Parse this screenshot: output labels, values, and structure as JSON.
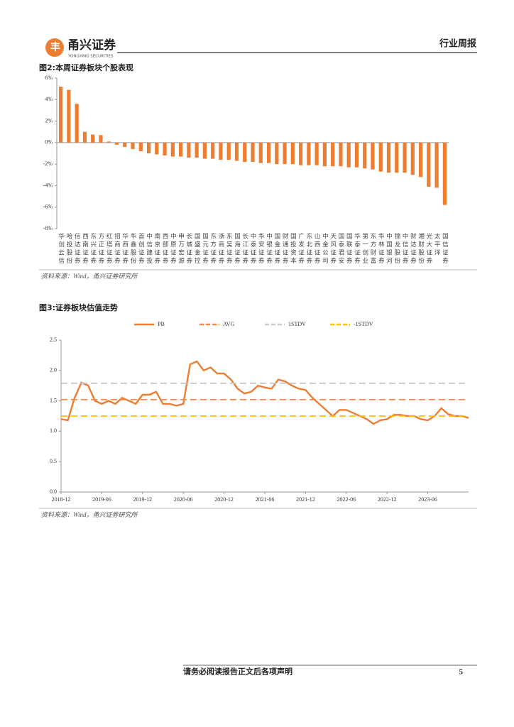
{
  "header": {
    "logo_name": "甬兴证券",
    "logo_sub": "YONGXING SECURITIES",
    "report_type": "行业周报"
  },
  "footer": {
    "disclaimer": "请务必阅读报告正文后各项声明",
    "page": 5
  },
  "chart_data": [
    {
      "type": "bar",
      "title": "图2:本周证券板块个股表现",
      "source": "资料来源：Wind，甬兴证券研究所",
      "color": "#ed7d31",
      "categories": [
        "华创云信",
        "哈投股份",
        "信达证券",
        "西南证券",
        "东兴证券",
        "方正证券",
        "红塔证券",
        "招商证券",
        "华西证券",
        "华鑫股份",
        "首创证券",
        "中信建投",
        "南京证券",
        "西部证券",
        "中原证券",
        "申万宏源",
        "长城证券",
        "国盛金控",
        "国元证券",
        "东方证券",
        "浙商证券",
        "东吴证券",
        "国海证券",
        "长江证券",
        "中泰证券",
        "华安证券",
        "中银证券",
        "国金证券",
        "财通证券",
        "国投资本",
        "广发证券",
        "东北证券",
        "山西证券",
        "中金公司",
        "天风证券",
        "国泰君安",
        "国联证券",
        "华泰证券",
        "第一创业",
        "东方财富",
        "华林证券",
        "中国银河",
        "锦龙股份",
        "中信证券",
        "财达证券",
        "湘财股份",
        "光大证券",
        "太平洋",
        "国信证券"
      ],
      "values": [
        5.2,
        4.9,
        3.6,
        1.0,
        0.75,
        0.7,
        0.1,
        -0.2,
        -0.4,
        -0.6,
        -0.8,
        -1.0,
        -1.1,
        -1.2,
        -1.3,
        -1.3,
        -1.4,
        -1.4,
        -1.5,
        -1.5,
        -1.6,
        -1.6,
        -1.7,
        -1.8,
        -1.8,
        -1.9,
        -1.9,
        -2.0,
        -2.0,
        -2.0,
        -2.1,
        -2.1,
        -2.1,
        -2.2,
        -2.2,
        -2.2,
        -2.3,
        -2.3,
        -2.4,
        -2.5,
        -2.7,
        -2.8,
        -2.8,
        -2.8,
        -3.0,
        -3.2,
        -4.1,
        -4.2,
        -5.8
      ],
      "ylim": [
        -8,
        6
      ],
      "yticks": [
        {
          "value": 6,
          "label": "6%"
        },
        {
          "value": 4,
          "label": "4%"
        },
        {
          "value": 2,
          "label": "2%"
        },
        {
          "value": 0,
          "label": "0%"
        },
        {
          "value": -2,
          "label": "-2%"
        },
        {
          "value": -4,
          "label": "-4%"
        },
        {
          "value": -6,
          "label": "-6%"
        },
        {
          "value": -8,
          "label": "-8%"
        }
      ]
    },
    {
      "type": "line",
      "title": "图3:证券板块估值走势",
      "source": "资料来源：Wind，甬兴证券研究所",
      "x": [
        "2018-12",
        "2019-01",
        "2019-02",
        "2019-03",
        "2019-04",
        "2019-05",
        "2019-06",
        "2019-07",
        "2019-08",
        "2019-09",
        "2019-10",
        "2019-11",
        "2019-12",
        "2020-01",
        "2020-02",
        "2020-03",
        "2020-04",
        "2020-05",
        "2020-06",
        "2020-07",
        "2020-08",
        "2020-09",
        "2020-10",
        "2020-11",
        "2020-12",
        "2021-01",
        "2021-02",
        "2021-03",
        "2021-04",
        "2021-05",
        "2021-06",
        "2021-07",
        "2021-08",
        "2021-09",
        "2021-10",
        "2021-11",
        "2021-12",
        "2022-01",
        "2022-02",
        "2022-03",
        "2022-04",
        "2022-05",
        "2022-06",
        "2022-07",
        "2022-08",
        "2022-09",
        "2022-10",
        "2022-11",
        "2022-12",
        "2023-01",
        "2023-02",
        "2023-03",
        "2023-04",
        "2023-05",
        "2023-06",
        "2023-07",
        "2023-08",
        "2023-09",
        "2023-10",
        "2023-11",
        "2023-12"
      ],
      "xticks": [
        "2018-12",
        "2019-06",
        "2019-12",
        "2020-06",
        "2020-12",
        "2021-06",
        "2021-12",
        "2022-06",
        "2022-12",
        "2023-06"
      ],
      "ylim": [
        0,
        2.5
      ],
      "yticks": [
        {
          "value": 0,
          "label": "0.0"
        },
        0.5,
        {
          "value": 1,
          "label": "1.0"
        },
        1.5,
        {
          "value": 2,
          "label": "2.0"
        },
        2.5
      ],
      "series": [
        {
          "name": "PB",
          "color": "#ed7d31",
          "style": "solid",
          "values": [
            1.2,
            1.18,
            1.55,
            1.8,
            1.75,
            1.5,
            1.45,
            1.5,
            1.45,
            1.55,
            1.5,
            1.45,
            1.6,
            1.6,
            1.65,
            1.45,
            1.45,
            1.42,
            1.45,
            2.1,
            2.15,
            2.0,
            2.05,
            1.95,
            1.95,
            1.85,
            1.7,
            1.62,
            1.65,
            1.75,
            1.72,
            1.7,
            1.85,
            1.82,
            1.75,
            1.7,
            1.68,
            1.55,
            1.45,
            1.35,
            1.25,
            1.35,
            1.35,
            1.3,
            1.25,
            1.2,
            1.12,
            1.18,
            1.2,
            1.27,
            1.27,
            1.25,
            1.25,
            1.2,
            1.18,
            1.25,
            1.38,
            1.28,
            1.25,
            1.25,
            1.22
          ]
        },
        {
          "name": "AVG",
          "color": "#f4894b",
          "style": "dashed",
          "values": [
            1.52,
            1.52,
            1.52,
            1.52,
            1.52,
            1.52,
            1.52,
            1.52,
            1.52,
            1.52,
            1.52,
            1.52,
            1.52,
            1.52,
            1.52,
            1.52,
            1.52,
            1.52,
            1.52,
            1.52,
            1.52,
            1.52,
            1.52,
            1.52,
            1.52,
            1.52,
            1.52,
            1.52,
            1.52,
            1.52,
            1.52,
            1.52,
            1.52,
            1.52,
            1.52,
            1.52,
            1.52,
            1.52,
            1.52,
            1.52,
            1.52,
            1.52,
            1.52,
            1.52,
            1.52,
            1.52,
            1.52,
            1.52,
            1.52,
            1.52,
            1.52,
            1.52,
            1.52,
            1.52,
            1.52,
            1.52,
            1.52,
            1.52,
            1.52,
            1.52,
            1.52
          ]
        },
        {
          "name": "1STDV",
          "color": "#c9c9c9",
          "style": "dashed",
          "values": [
            1.79,
            1.79,
            1.79,
            1.79,
            1.79,
            1.79,
            1.79,
            1.79,
            1.79,
            1.79,
            1.79,
            1.79,
            1.79,
            1.79,
            1.79,
            1.79,
            1.79,
            1.79,
            1.79,
            1.79,
            1.79,
            1.79,
            1.79,
            1.79,
            1.79,
            1.79,
            1.79,
            1.79,
            1.79,
            1.79,
            1.79,
            1.79,
            1.79,
            1.79,
            1.79,
            1.79,
            1.79,
            1.79,
            1.79,
            1.79,
            1.79,
            1.79,
            1.79,
            1.79,
            1.79,
            1.79,
            1.79,
            1.79,
            1.79,
            1.79,
            1.79,
            1.79,
            1.79,
            1.79,
            1.79,
            1.79,
            1.79,
            1.79,
            1.79,
            1.79,
            1.79
          ]
        },
        {
          "name": "-1STDV",
          "color": "#ffc000",
          "style": "dashed",
          "values": [
            1.25,
            1.25,
            1.25,
            1.25,
            1.25,
            1.25,
            1.25,
            1.25,
            1.25,
            1.25,
            1.25,
            1.25,
            1.25,
            1.25,
            1.25,
            1.25,
            1.25,
            1.25,
            1.25,
            1.25,
            1.25,
            1.25,
            1.25,
            1.25,
            1.25,
            1.25,
            1.25,
            1.25,
            1.25,
            1.25,
            1.25,
            1.25,
            1.25,
            1.25,
            1.25,
            1.25,
            1.25,
            1.25,
            1.25,
            1.25,
            1.25,
            1.25,
            1.25,
            1.25,
            1.25,
            1.25,
            1.25,
            1.25,
            1.25,
            1.25,
            1.25,
            1.25,
            1.25,
            1.25,
            1.25,
            1.25,
            1.25,
            1.25,
            1.25,
            1.25,
            1.25
          ]
        }
      ]
    }
  ]
}
